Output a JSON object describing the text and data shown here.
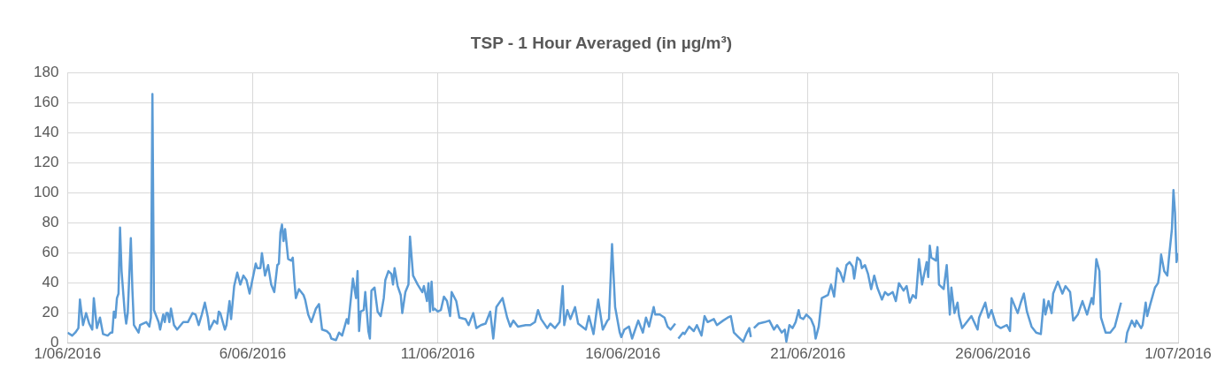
{
  "chart_data": {
    "type": "line",
    "title": "TSP - 1 Hour Averaged (in µg/m³)",
    "x": [
      "2016-06-01T00:00",
      "2016-06-01T03:00",
      "2016-06-01T05:00",
      "2016-06-01T07:00",
      "2016-06-01T08:00",
      "2016-06-01T10:00",
      "2016-06-01T12:00",
      "2016-06-01T14:00",
      "2016-06-01T16:00",
      "2016-06-01T17:00",
      "2016-06-01T19:00",
      "2016-06-01T21:00",
      "2016-06-01T23:00",
      "2016-06-02T02:00",
      "2016-06-02T04:00",
      "2016-06-02T05:00",
      "2016-06-02T06:00",
      "2016-06-02T07:00",
      "2016-06-02T08:00",
      "2016-06-02T09:00",
      "2016-06-02T10:00",
      "2016-06-02T11:00",
      "2016-06-02T13:00",
      "2016-06-02T14:00",
      "2016-06-02T15:00",
      "2016-06-02T17:00",
      "2016-06-02T18:00",
      "2016-06-02T19:00",
      "2016-06-02T22:00",
      "2016-06-02T23:00",
      "2016-06-03T03:00",
      "2016-06-03T05:00",
      "2016-06-03T06:00",
      "2016-06-03T07:00",
      "2016-06-03T08:00",
      "2016-06-03T11:00",
      "2016-06-03T12:00",
      "2016-06-03T14:00",
      "2016-06-03T15:00",
      "2016-06-03T16:00",
      "2016-06-03T17:00",
      "2016-06-03T18:00",
      "2016-06-03T19:00",
      "2016-06-03T21:00",
      "2016-06-03T23:00",
      "2016-06-04T03:00",
      "2016-06-04T06:00",
      "2016-06-04T09:00",
      "2016-06-04T11:00",
      "2016-06-04T13:00",
      "2016-06-04T15:00",
      "2016-06-04T17:00",
      "2016-06-04T19:00",
      "2016-06-04T20:00",
      "2016-06-04T23:00",
      "2016-06-05T01:00",
      "2016-06-05T02:00",
      "2016-06-05T03:00",
      "2016-06-05T06:00",
      "2016-06-05T07:00",
      "2016-06-05T09:00",
      "2016-06-05T10:00",
      "2016-06-05T12:00",
      "2016-06-05T14:00",
      "2016-06-05T16:00",
      "2016-06-05T18:00",
      "2016-06-05T20:00",
      "2016-06-05T22:00",
      "2016-06-05T23:00",
      "2016-06-06T02:00",
      "2016-06-06T03:00",
      "2016-06-06T05:00",
      "2016-06-06T06:00",
      "2016-06-06T08:00",
      "2016-06-06T10:00",
      "2016-06-06T12:00",
      "2016-06-06T14:00",
      "2016-06-06T16:00",
      "2016-06-06T17:00",
      "2016-06-06T18:00",
      "2016-06-06T19:00",
      "2016-06-06T20:00",
      "2016-06-06T21:00",
      "2016-06-06T23:00",
      "2016-06-07T01:00",
      "2016-06-07T02:00",
      "2016-06-07T03:00",
      "2016-06-07T04:00",
      "2016-06-07T06:00",
      "2016-06-07T09:00",
      "2016-06-07T10:00",
      "2016-06-07T12:00",
      "2016-06-07T14:00",
      "2016-06-07T17:00",
      "2016-06-07T19:00",
      "2016-06-07T21:00",
      "2016-06-08T00:00",
      "2016-06-08T02:00",
      "2016-06-08T03:00",
      "2016-06-08T06:00",
      "2016-06-08T08:00",
      "2016-06-08T10:00",
      "2016-06-08T13:00",
      "2016-06-08T14:00",
      "2016-06-08T17:00",
      "2016-06-08T19:00",
      "2016-06-08T20:00",
      "2016-06-08T21:00",
      "2016-06-08T22:00",
      "2016-06-09T00:00",
      "2016-06-09T01:00",
      "2016-06-09T03:00",
      "2016-06-09T04:00",
      "2016-06-09T05:00",
      "2016-06-09T07:00",
      "2016-06-09T09:00",
      "2016-06-09T11:00",
      "2016-06-09T13:00",
      "2016-06-09T14:00",
      "2016-06-09T16:00",
      "2016-06-09T18:00",
      "2016-06-09T19:00",
      "2016-06-09T20:00",
      "2016-06-09T22:00",
      "2016-06-10T00:00",
      "2016-06-10T01:00",
      "2016-06-10T03:00",
      "2016-06-10T05:00",
      "2016-06-10T06:00",
      "2016-06-10T08:00",
      "2016-06-10T11:00",
      "2016-06-10T14:00",
      "2016-06-10T15:00",
      "2016-06-10T17:00",
      "2016-06-10T18:00",
      "2016-06-10T19:00",
      "2016-06-10T20:00",
      "2016-06-10T21:00",
      "2016-06-10T22:00",
      "2016-06-11T00:00",
      "2016-06-11T02:00",
      "2016-06-11T04:00",
      "2016-06-11T06:00",
      "2016-06-11T08:00",
      "2016-06-11T09:00",
      "2016-06-11T12:00",
      "2016-06-11T14:00",
      "2016-06-11T18:00",
      "2016-06-11T20:00",
      "2016-06-11T23:00",
      "2016-06-12T01:00",
      "2016-06-12T04:00",
      "2016-06-12T07:00",
      "2016-06-12T10:00",
      "2016-06-12T12:00",
      "2016-06-12T14:00",
      "2016-06-12T18:00",
      "2016-06-12T21:00",
      "2016-06-12T23:00",
      "2016-06-13T01:00",
      "2016-06-13T04:00",
      "2016-06-13T09:00",
      "2016-06-13T12:00",
      "2016-06-13T15:00",
      "2016-06-13T17:00",
      "2016-06-13T19:00",
      "2016-06-13T23:00",
      "2016-06-14T01:00",
      "2016-06-14T04:00",
      "2016-06-14T07:00",
      "2016-06-14T09:00",
      "2016-06-14T10:00",
      "2016-06-14T12:00",
      "2016-06-14T14:00",
      "2016-06-14T17:00",
      "2016-06-14T19:00",
      "2016-06-15T00:00",
      "2016-06-15T02:00",
      "2016-06-15T05:00",
      "2016-06-15T08:00",
      "2016-06-15T11:00",
      "2016-06-15T14:00",
      "2016-06-15T15:00",
      "2016-06-15T17:00",
      "2016-06-15T19:00",
      "2016-06-15T22:00",
      "2016-06-15T23:00",
      "2016-06-16T01:00",
      "2016-06-16T04:00",
      "2016-06-16T06:00",
      "2016-06-16T10:00",
      "2016-06-16T13:00",
      "2016-06-16T15:00",
      "2016-06-16T17:00",
      "2016-06-16T20:00",
      "2016-06-16T21:00",
      "2016-06-17T00:00",
      "2016-06-17T03:00",
      "2016-06-17T05:00",
      "2016-06-17T07:00",
      "2016-06-17T10:00",
      "2016-06-17T11:00",
      "2016-06-17T12:00",
      "2016-06-17T15:00",
      "2016-06-17T16:00",
      "2016-06-17T19:00",
      "2016-06-17T22:00",
      "2016-06-18T00:00",
      "2016-06-18T03:00",
      "2016-06-18T05:00",
      "2016-06-18T07:00",
      "2016-06-18T11:00",
      "2016-06-18T13:00",
      "2016-06-18T17:00",
      "2016-06-18T20:00",
      "2016-06-18T22:00",
      "2016-06-19T00:00",
      "2016-06-19T03:00",
      "2016-06-19T06:00",
      "2016-06-19T08:00",
      "2016-06-19T10:00",
      "2016-06-19T11:00",
      "2016-06-19T12:00",
      "2016-06-19T13:00",
      "2016-06-19T16:00",
      "2016-06-19T20:00",
      "2016-06-19T23:00",
      "2016-06-20T02:00",
      "2016-06-20T04:00",
      "2016-06-20T07:00",
      "2016-06-20T09:00",
      "2016-06-20T10:00",
      "2016-06-20T12:00",
      "2016-06-20T14:00",
      "2016-06-20T16:00",
      "2016-06-20T18:00",
      "2016-06-20T19:00",
      "2016-06-20T21:00",
      "2016-06-20T23:00",
      "2016-06-21T00:00",
      "2016-06-21T02:00",
      "2016-06-21T04:00",
      "2016-06-21T05:00",
      "2016-06-21T07:00",
      "2016-06-21T09:00",
      "2016-06-21T11:00",
      "2016-06-21T13:00",
      "2016-06-21T15:00",
      "2016-06-21T17:00",
      "2016-06-21T19:00",
      "2016-06-21T21:00",
      "2016-06-21T23:00",
      "2016-06-22T01:00",
      "2016-06-22T03:00",
      "2016-06-22T05:00",
      "2016-06-22T06:00",
      "2016-06-22T08:00",
      "2016-06-22T10:00",
      "2016-06-22T11:00",
      "2016-06-22T13:00",
      "2016-06-22T15:00",
      "2016-06-22T17:00",
      "2016-06-22T19:00",
      "2016-06-22T21:00",
      "2016-06-23T00:00",
      "2016-06-23T02:00",
      "2016-06-23T04:00",
      "2016-06-23T07:00",
      "2016-06-23T09:00",
      "2016-06-23T11:00",
      "2016-06-23T14:00",
      "2016-06-23T16:00",
      "2016-06-23T18:00",
      "2016-06-23T20:00",
      "2016-06-23T22:00",
      "2016-06-24T00:00",
      "2016-06-24T02:00",
      "2016-06-24T05:00",
      "2016-06-24T06:00",
      "2016-06-24T07:00",
      "2016-06-24T08:00",
      "2016-06-24T11:00",
      "2016-06-24T12:00",
      "2016-06-24T13:00",
      "2016-06-24T16:00",
      "2016-06-24T18:00",
      "2016-06-24T20:00",
      "2016-06-24T21:00",
      "2016-06-24T23:00",
      "2016-06-25T01:00",
      "2016-06-25T02:00",
      "2016-06-25T04:00",
      "2016-06-25T07:00",
      "2016-06-25T10:00",
      "2016-06-25T14:00",
      "2016-06-25T15:00",
      "2016-06-25T19:00",
      "2016-06-25T21:00",
      "2016-06-25T23:00",
      "2016-06-26T02:00",
      "2016-06-26T05:00",
      "2016-06-26T09:00",
      "2016-06-26T11:00",
      "2016-06-26T12:00",
      "2016-06-26T14:00",
      "2016-06-26T16:00",
      "2016-06-26T18:00",
      "2016-06-26T20:00",
      "2016-06-26T22:00",
      "2016-06-27T01:00",
      "2016-06-27T04:00",
      "2016-06-27T07:00",
      "2016-06-27T09:00",
      "2016-06-27T10:00",
      "2016-06-27T12:00",
      "2016-06-27T14:00",
      "2016-06-27T15:00",
      "2016-06-27T18:00",
      "2016-06-27T21:00",
      "2016-06-27T23:00",
      "2016-06-28T02:00",
      "2016-06-28T04:00",
      "2016-06-28T07:00",
      "2016-06-28T10:00",
      "2016-06-28T13:00",
      "2016-06-28T16:00",
      "2016-06-28T17:00",
      "2016-06-28T18:00",
      "2016-06-28T19:00",
      "2016-06-28T21:00",
      "2016-06-28T22:00",
      "2016-06-29T01:00",
      "2016-06-29T04:00",
      "2016-06-29T07:00",
      "2016-06-29T09:00",
      "2016-06-29T11:00",
      "2016-06-29T12:00",
      "2016-06-29T14:00",
      "2016-06-29T15:00",
      "2016-06-29T18:00",
      "2016-06-29T20:00",
      "2016-06-29T21:00",
      "2016-06-30T00:00",
      "2016-06-30T01:00",
      "2016-06-30T03:00",
      "2016-06-30T04:00",
      "2016-06-30T06:00",
      "2016-06-30T09:00",
      "2016-06-30T11:00",
      "2016-06-30T12:00",
      "2016-06-30T13:00",
      "2016-06-30T15:00",
      "2016-06-30T17:00",
      "2016-06-30T18:00",
      "2016-06-30T20:00",
      "2016-06-30T21:00",
      "2016-06-30T22:00",
      "2016-06-30T23:00",
      "2016-07-01T00:00"
    ],
    "series": [
      {
        "color": "#5b9bd5",
        "values": [
          7,
          5,
          7,
          10,
          29,
          12,
          20,
          13,
          9,
          30,
          10,
          17,
          6,
          5,
          7,
          7,
          21,
          17,
          30,
          33,
          77,
          48,
          21,
          13,
          20,
          70,
          36,
          12,
          7,
          12,
          14,
          11,
          17,
          166,
          22,
          14,
          9,
          19,
          14,
          20,
          20,
          14,
          23,
          12,
          9,
          14,
          14,
          20,
          19,
          12,
          19,
          27,
          17,
          9,
          15,
          13,
          21,
          20,
          9,
          12,
          28,
          16,
          38,
          47,
          39,
          45,
          42,
          33,
          38,
          53,
          50,
          50,
          60,
          45,
          52,
          39,
          34,
          52,
          53,
          74,
          79,
          68,
          76,
          56,
          55,
          57,
          42,
          30,
          36,
          32,
          29,
          19,
          14,
          23,
          26,
          9,
          8,
          6,
          3,
          2,
          7,
          5,
          16,
          13,
          43,
          30,
          48,
          8,
          21,
          22,
          34,
          8,
          3,
          35,
          37,
          21,
          18,
          30,
          42,
          48,
          46,
          39,
          50,
          38,
          32,
          20,
          34,
          39,
          71,
          45,
          39,
          34,
          38,
          28,
          40,
          21,
          41,
          22,
          23,
          21,
          22,
          31,
          28,
          18,
          34,
          28,
          17,
          16,
          12,
          20,
          10,
          12,
          13,
          21,
          3,
          24,
          30,
          17,
          11,
          15,
          11,
          12,
          12,
          14,
          22,
          16,
          10,
          13,
          10,
          14,
          38,
          12,
          22,
          16,
          24,
          13,
          9,
          18,
          6,
          29,
          9,
          15,
          16,
          66,
          24,
          7,
          4,
          9,
          11,
          3,
          15,
          7,
          17,
          11,
          24,
          19,
          19,
          17,
          11,
          9,
          13,
          null,
          3,
          7,
          6,
          11,
          8,
          12,
          5,
          18,
          14,
          16,
          12,
          15,
          17,
          18,
          7,
          4,
          1,
          6,
          10,
          4,
          null,
          10,
          13,
          14,
          15,
          9,
          12,
          7,
          9,
          1,
          12,
          10,
          14,
          22,
          17,
          16,
          19,
          18,
          16,
          11,
          3,
          11,
          30,
          31,
          32,
          39,
          31,
          50,
          47,
          41,
          52,
          54,
          51,
          43,
          57,
          55,
          50,
          52,
          46,
          36,
          45,
          37,
          29,
          34,
          32,
          34,
          28,
          40,
          35,
          38,
          27,
          32,
          30,
          56,
          39,
          54,
          44,
          65,
          57,
          55,
          64,
          39,
          36,
          52,
          19,
          37,
          20,
          27,
          18,
          10,
          14,
          18,
          9,
          17,
          27,
          17,
          22,
          12,
          10,
          12,
          8,
          30,
          25,
          20,
          27,
          33,
          21,
          11,
          7,
          6,
          29,
          19,
          28,
          20,
          33,
          41,
          33,
          38,
          34,
          15,
          19,
          28,
          19,
          30,
          26,
          40,
          56,
          48,
          17,
          7,
          7,
          11,
          19,
          27,
          null,
          0,
          7,
          15,
          11,
          15,
          10,
          12,
          27,
          18,
          26,
          37,
          40,
          47,
          59,
          48,
          45,
          56,
          76,
          102,
          87,
          54,
          60
        ]
      }
    ],
    "xlim": [
      "2016-06-01",
      "2016-07-01"
    ],
    "xticks": [
      {
        "value": "2016-06-01",
        "label": "1/06/2016"
      },
      {
        "value": "2016-06-06",
        "label": "6/06/2016"
      },
      {
        "value": "2016-06-11",
        "label": "11/06/2016"
      },
      {
        "value": "2016-06-16",
        "label": "16/06/2016"
      },
      {
        "value": "2016-06-21",
        "label": "21/06/2016"
      },
      {
        "value": "2016-06-26",
        "label": "26/06/2016"
      },
      {
        "value": "2016-07-01",
        "label": "1/07/2016"
      }
    ],
    "ylim": [
      0,
      180
    ],
    "yticks": [
      0,
      20,
      40,
      60,
      80,
      100,
      120,
      140,
      160,
      180
    ],
    "grid": true,
    "legend": false,
    "marker": "none",
    "line_style": "solid"
  }
}
